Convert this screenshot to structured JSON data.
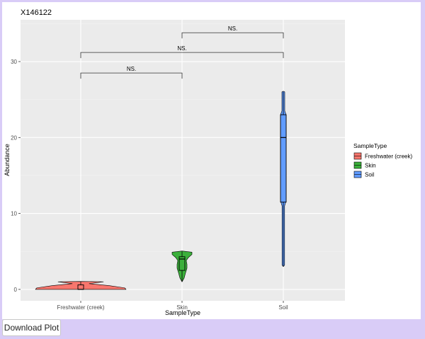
{
  "download_label": "Download Plot",
  "chart_data": {
    "type": "violin",
    "title": "X146122",
    "xlabel": "SampleType",
    "ylabel": "Abundance",
    "categories": [
      "Freshwater (creek)",
      "Skin",
      "Soil"
    ],
    "ylim": [
      -1.5,
      35.5
    ],
    "yticks": [
      0,
      10,
      20,
      30
    ],
    "grid": true,
    "legend_position": "right",
    "legend": {
      "title": "SampleType",
      "entries": [
        "Freshwater (creek)",
        "Skin",
        "Soil"
      ]
    },
    "colors": {
      "Freshwater (creek)": "#f8766d",
      "Skin": "#3bb03b",
      "Soil": "#619cff"
    },
    "series": [
      {
        "name": "Freshwater (creek)",
        "min": 0,
        "q1": 0,
        "median": 0,
        "q3": 0.6,
        "max": 1,
        "density_peak": 0
      },
      {
        "name": "Skin",
        "min": 1,
        "q1": 2.5,
        "median": 4,
        "q3": 4.3,
        "max": 5,
        "density_peak": 4.5
      },
      {
        "name": "Soil",
        "min": 3,
        "q1": 11.5,
        "median": 20,
        "q3": 23,
        "max": 26,
        "density_peak": 20
      }
    ],
    "comparisons": [
      {
        "groups": [
          "Freshwater (creek)",
          "Skin"
        ],
        "label": "NS."
      },
      {
        "groups": [
          "Freshwater (creek)",
          "Soil"
        ],
        "label": "NS."
      },
      {
        "groups": [
          "Skin",
          "Soil"
        ],
        "label": "NS."
      }
    ]
  }
}
